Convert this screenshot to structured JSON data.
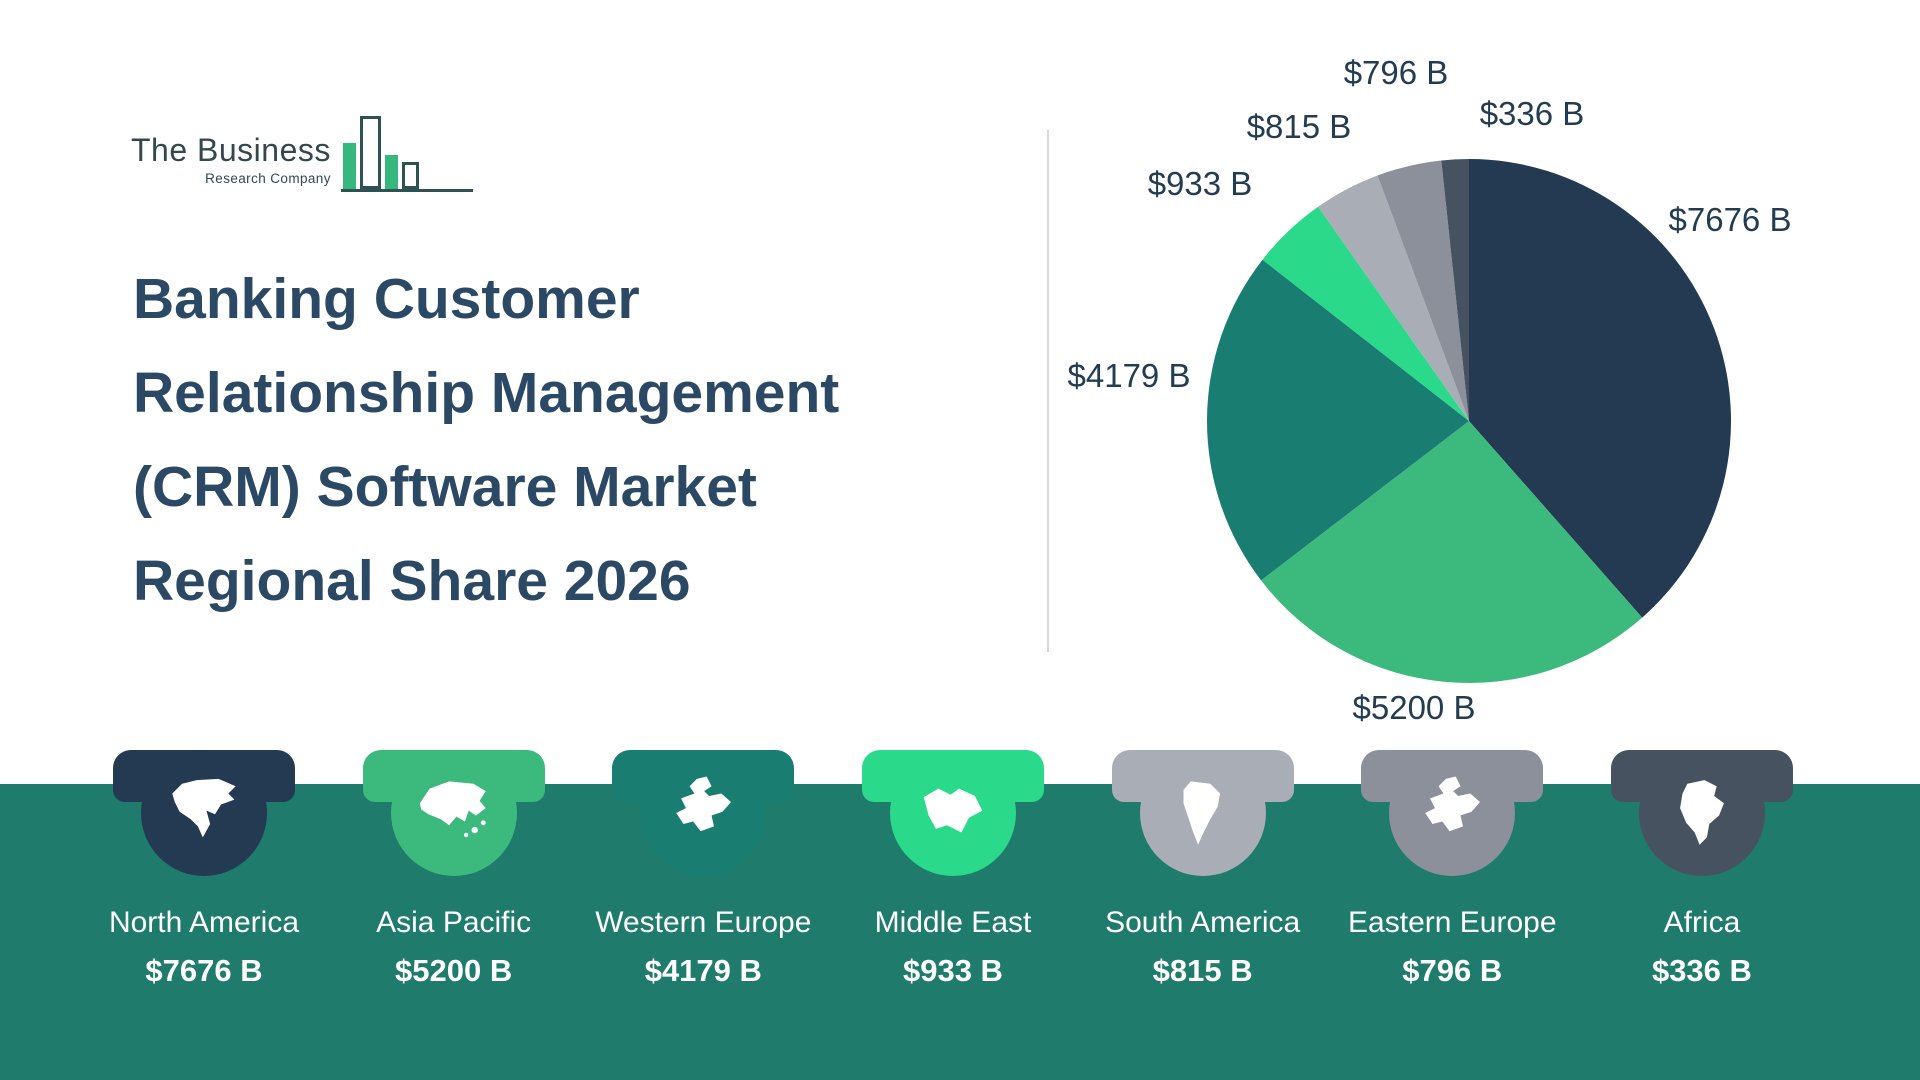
{
  "logo": {
    "name_top": "The Business",
    "name_bottom": "Research Company"
  },
  "title": {
    "lines": [
      "Banking Customer",
      "Relationship Management",
      "(CRM) Software Market",
      "Regional Share 2026"
    ]
  },
  "chart_data": {
    "type": "pie",
    "title": "Banking Customer Relationship Management (CRM) Software Market Regional Share 2026",
    "unit": "$ billions",
    "categories": [
      "North America",
      "Asia Pacific",
      "Western Europe",
      "Middle East",
      "South America",
      "Eastern Europe",
      "Africa"
    ],
    "values": [
      7676,
      5200,
      4179,
      933,
      815,
      796,
      336
    ],
    "labels": [
      "$7676 B",
      "$5200 B",
      "$4179 B",
      "$933 B",
      "$815 B",
      "$796 B",
      "$336 B"
    ],
    "colors": [
      "#233a52",
      "#3cba7e",
      "#1a7d72",
      "#2ad98a",
      "#a9adb5",
      "#8b909a",
      "#475261"
    ],
    "start_angle_deg": 0,
    "direction": "clockwise",
    "legend_position": "bottom"
  },
  "regions": [
    {
      "name": "North America",
      "value": "$7676 B",
      "color": "#233a52",
      "icon": "north-america"
    },
    {
      "name": "Asia Pacific",
      "value": "$5200 B",
      "color": "#3cba7e",
      "icon": "asia-pacific"
    },
    {
      "name": "Western Europe",
      "value": "$4179 B",
      "color": "#1a7d72",
      "icon": "europe"
    },
    {
      "name": "Middle East",
      "value": "$933 B",
      "color": "#2ad98a",
      "icon": "middle-east"
    },
    {
      "name": "South America",
      "value": "$815 B",
      "color": "#a9adb5",
      "icon": "south-america"
    },
    {
      "name": "Eastern Europe",
      "value": "$796 B",
      "color": "#8b909a",
      "icon": "europe"
    },
    {
      "name": "Africa",
      "value": "$336 B",
      "color": "#475261",
      "icon": "africa"
    }
  ]
}
